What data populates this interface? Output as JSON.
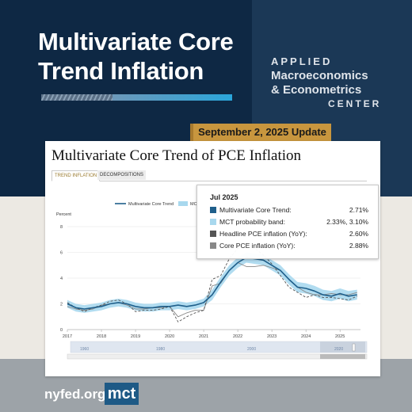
{
  "header": {
    "title": "Multivariate Core Trend Inflation",
    "center_line1": "APPLIED",
    "center_line2": "Macroeconomics",
    "center_line3": "& Econometrics",
    "center_line4": "CENTER",
    "update_badge": "September 2, 2025 Update"
  },
  "card": {
    "title": "Multivariate Core Trend of PCE Inflation",
    "tabs": [
      {
        "label": "TREND INFLATION",
        "active": true
      },
      {
        "label": "DECOMPOSITIONS",
        "active": false
      }
    ]
  },
  "tooltip": {
    "date": "Jul 2025",
    "rows": [
      {
        "label": "Multivariate Core Trend:",
        "value": "2.71%",
        "color": "#1f5f8b"
      },
      {
        "label": "MCT probability band:",
        "value": "2.33%, 3.10%",
        "color": "#a8d8ee"
      },
      {
        "label": "Headline PCE inflation (YoY):",
        "value": "2.60%",
        "color": "#555555"
      },
      {
        "label": "Core PCE inflation (YoY):",
        "value": "2.88%",
        "color": "#888888"
      }
    ]
  },
  "chart_data": {
    "type": "line",
    "ylabel": "Percent",
    "ylim": [
      0,
      8
    ],
    "yticks": [
      "0",
      "2",
      "4",
      "6",
      "8"
    ],
    "xlim": [
      2017.0,
      2025.6
    ],
    "xticks": [
      "2017",
      "2018",
      "2019",
      "2020",
      "2021",
      "2022",
      "2023",
      "2024",
      "2025"
    ],
    "legend": {
      "placement": "top",
      "visible_entries": [
        "Multivariate Core Trend",
        "MC"
      ]
    },
    "navigator_labels": [
      "1960",
      "1980",
      "2000",
      "2020"
    ],
    "colors": {
      "trend": "#1f5f8b",
      "band": "#a8d8ee",
      "headline": "#555555",
      "core": "#888888"
    },
    "series": [
      {
        "name": "Multivariate Core Trend",
        "x": [
          2017.0,
          2017.25,
          2017.5,
          2017.75,
          2018.0,
          2018.25,
          2018.5,
          2018.75,
          2019.0,
          2019.25,
          2019.5,
          2019.75,
          2020.0,
          2020.25,
          2020.5,
          2020.75,
          2021.0,
          2021.25,
          2021.5,
          2021.75,
          2022.0,
          2022.25,
          2022.5,
          2022.75,
          2023.0,
          2023.25,
          2023.5,
          2023.75,
          2024.0,
          2024.25,
          2024.5,
          2024.75,
          2025.0,
          2025.25,
          2025.5
        ],
        "y": [
          2.0,
          1.7,
          1.6,
          1.7,
          1.8,
          2.0,
          2.1,
          2.0,
          1.8,
          1.7,
          1.7,
          1.8,
          1.8,
          1.9,
          1.8,
          1.9,
          2.1,
          2.7,
          3.7,
          4.6,
          5.2,
          5.6,
          5.5,
          5.4,
          5.0,
          4.6,
          3.9,
          3.3,
          3.2,
          3.0,
          2.7,
          2.6,
          2.8,
          2.6,
          2.71
        ]
      },
      {
        "name": "MCT probability band lower",
        "x": [
          2017.0,
          2017.25,
          2017.5,
          2017.75,
          2018.0,
          2018.25,
          2018.5,
          2018.75,
          2019.0,
          2019.25,
          2019.5,
          2019.75,
          2020.0,
          2020.25,
          2020.5,
          2020.75,
          2021.0,
          2021.25,
          2021.5,
          2021.75,
          2022.0,
          2022.25,
          2022.5,
          2022.75,
          2023.0,
          2023.25,
          2023.5,
          2023.75,
          2024.0,
          2024.25,
          2024.5,
          2024.75,
          2025.0,
          2025.25,
          2025.5
        ],
        "y": [
          1.7,
          1.4,
          1.3,
          1.4,
          1.5,
          1.7,
          1.8,
          1.7,
          1.5,
          1.4,
          1.4,
          1.5,
          1.5,
          1.6,
          1.5,
          1.6,
          1.8,
          2.3,
          3.3,
          4.2,
          4.8,
          5.2,
          5.1,
          5.0,
          4.6,
          4.2,
          3.5,
          2.9,
          2.8,
          2.6,
          2.3,
          2.2,
          2.4,
          2.2,
          2.33
        ]
      },
      {
        "name": "MCT probability band upper",
        "x": [
          2017.0,
          2017.25,
          2017.5,
          2017.75,
          2018.0,
          2018.25,
          2018.5,
          2018.75,
          2019.0,
          2019.25,
          2019.5,
          2019.75,
          2020.0,
          2020.25,
          2020.5,
          2020.75,
          2021.0,
          2021.25,
          2021.5,
          2021.75,
          2022.0,
          2022.25,
          2022.5,
          2022.75,
          2023.0,
          2023.25,
          2023.5,
          2023.75,
          2024.0,
          2024.25,
          2024.5,
          2024.75,
          2025.0,
          2025.25,
          2025.5
        ],
        "y": [
          2.3,
          2.0,
          1.9,
          2.0,
          2.1,
          2.3,
          2.4,
          2.3,
          2.1,
          2.0,
          2.0,
          2.1,
          2.1,
          2.2,
          2.1,
          2.2,
          2.4,
          3.1,
          4.1,
          5.0,
          5.6,
          6.0,
          5.9,
          5.8,
          5.4,
          5.0,
          4.3,
          3.7,
          3.6,
          3.4,
          3.1,
          3.0,
          3.2,
          3.0,
          3.1
        ]
      },
      {
        "name": "Headline PCE inflation (YoY)",
        "x": [
          2017.0,
          2017.25,
          2017.5,
          2017.75,
          2018.0,
          2018.25,
          2018.5,
          2018.75,
          2019.0,
          2019.25,
          2019.5,
          2019.75,
          2020.0,
          2020.25,
          2020.5,
          2020.75,
          2021.0,
          2021.25,
          2021.5,
          2021.75,
          2022.0,
          2022.25,
          2022.5,
          2022.75,
          2023.0,
          2023.25,
          2023.5,
          2023.75,
          2024.0,
          2024.25,
          2024.5,
          2024.75,
          2025.0,
          2025.25,
          2025.5
        ],
        "y": [
          2.1,
          1.7,
          1.4,
          1.7,
          1.9,
          2.2,
          2.3,
          2.0,
          1.4,
          1.5,
          1.5,
          1.6,
          1.8,
          0.6,
          1.0,
          1.3,
          1.5,
          3.9,
          4.2,
          5.5,
          6.3,
          6.5,
          6.3,
          5.8,
          5.1,
          4.2,
          3.3,
          2.9,
          2.5,
          2.7,
          2.5,
          2.5,
          2.4,
          2.3,
          2.6
        ]
      },
      {
        "name": "Core PCE inflation (YoY)",
        "x": [
          2017.0,
          2017.25,
          2017.5,
          2017.75,
          2018.0,
          2018.25,
          2018.5,
          2018.75,
          2019.0,
          2019.25,
          2019.5,
          2019.75,
          2020.0,
          2020.25,
          2020.5,
          2020.75,
          2021.0,
          2021.25,
          2021.5,
          2021.75,
          2022.0,
          2022.25,
          2022.5,
          2022.75,
          2023.0,
          2023.25,
          2023.5,
          2023.75,
          2024.0,
          2024.25,
          2024.5,
          2024.75,
          2025.0,
          2025.25,
          2025.5
        ],
        "y": [
          1.8,
          1.6,
          1.5,
          1.6,
          1.9,
          2.0,
          2.1,
          1.9,
          1.6,
          1.6,
          1.7,
          1.7,
          1.8,
          1.0,
          1.3,
          1.5,
          1.5,
          3.4,
          3.6,
          4.6,
          5.2,
          4.9,
          4.9,
          5.0,
          4.8,
          4.6,
          3.9,
          3.3,
          2.9,
          2.7,
          2.7,
          2.8,
          2.7,
          2.7,
          2.88
        ]
      }
    ]
  },
  "footer": {
    "url": "nyfed.org/",
    "badge": "mct"
  }
}
